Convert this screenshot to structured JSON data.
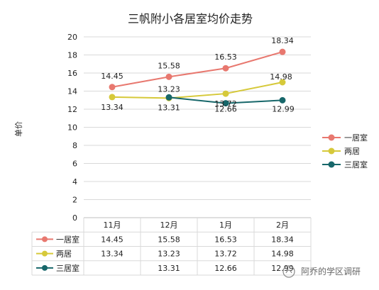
{
  "chart_data": {
    "type": "line",
    "title": "三帆附小各居室均价走势",
    "ylabel": "单价",
    "xlabel": "",
    "categories": [
      "11月",
      "12月",
      "1月",
      "2月"
    ],
    "ylim": [
      0,
      20
    ],
    "yticks": [
      "0",
      "2",
      "4",
      "6",
      "8",
      "10",
      "12",
      "14",
      "16",
      "18",
      "20"
    ],
    "grid": true,
    "legend_position": "right",
    "series": [
      {
        "name": "一居室",
        "color": "#e8786f",
        "values": [
          14.45,
          15.58,
          16.53,
          18.34
        ],
        "labels": [
          "14.45",
          "15.58",
          "16.53",
          "18.34"
        ],
        "table": [
          "14.45",
          "15.58",
          "16.53",
          "18.34"
        ]
      },
      {
        "name": "两居",
        "color": "#d6c93a",
        "values": [
          13.34,
          13.23,
          13.72,
          14.98
        ],
        "labels": [
          "13.34",
          "13.23",
          "13.72",
          "14.98"
        ],
        "table": [
          "13.34",
          "13.23",
          "13.72",
          "14.98"
        ]
      },
      {
        "name": "三居室",
        "color": "#17676a",
        "values": [
          null,
          13.31,
          12.66,
          12.99
        ],
        "labels": [
          "",
          "13.31",
          "12.66",
          "12.99"
        ],
        "table": [
          "",
          "13.31",
          "12.66",
          "12.99"
        ]
      }
    ]
  },
  "watermark": "阿乔的学区调研"
}
